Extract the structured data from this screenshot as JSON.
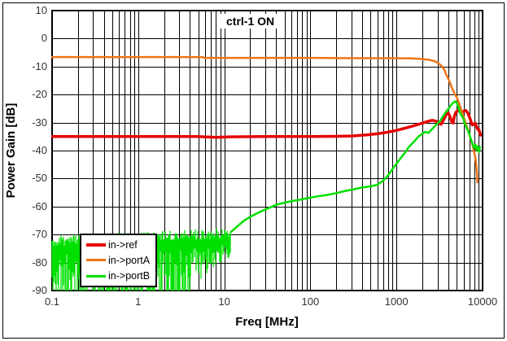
{
  "figure": {
    "title_annotation": "ctrl-1 ON",
    "xlabel": "Freq [MHz]",
    "ylabel": "Power Gain [dB]"
  },
  "axes": {
    "x_scale": "log",
    "xlim": [
      0.1,
      10000
    ],
    "ylim": [
      -90,
      10
    ],
    "x_ticks": [
      0.1,
      1,
      10,
      100,
      1000,
      10000
    ],
    "x_tick_labels": [
      "0.1",
      "1",
      "10",
      "100",
      "1000",
      "10000"
    ],
    "y_ticks": [
      10,
      0,
      -10,
      -20,
      -30,
      -40,
      -50,
      -60,
      -70,
      -80,
      -90
    ],
    "y_tick_labels": [
      "10",
      "0",
      "-10",
      "-20",
      "-30",
      "-40",
      "-50",
      "-60",
      "-70",
      "-80",
      "-90"
    ],
    "grid": "black major y every 10 dB, log major+minor x"
  },
  "legend": {
    "position": "lower-left",
    "items": [
      {
        "label": "in->ref",
        "color": "#e60000",
        "swatch_thickness": 4
      },
      {
        "label": "in->portA",
        "color": "#ee7518",
        "swatch_thickness": 3
      },
      {
        "label": "in->portB",
        "color": "#00e000",
        "swatch_thickness": 3
      }
    ]
  },
  "chart_data": {
    "type": "line",
    "title": "ctrl-1 ON",
    "xlabel": "Freq [MHz]",
    "ylabel": "Power Gain [dB]",
    "x_scale": "log",
    "xlim": [
      0.1,
      10000
    ],
    "ylim": [
      -90,
      10
    ],
    "legend_position": "lower-left",
    "series": [
      {
        "name": "in->ref",
        "color": "#e60000",
        "width": 3.5,
        "points": [
          [
            0.1,
            -35
          ],
          [
            1,
            -35
          ],
          [
            5,
            -35
          ],
          [
            8,
            -35.3
          ],
          [
            12,
            -35.1
          ],
          [
            30,
            -35
          ],
          [
            100,
            -35
          ],
          [
            200,
            -34.9
          ],
          [
            300,
            -34.8
          ],
          [
            450,
            -34.4
          ],
          [
            600,
            -34
          ],
          [
            800,
            -33.4
          ],
          [
            1000,
            -32.8
          ],
          [
            1300,
            -31.9
          ],
          [
            1600,
            -31.1
          ],
          [
            2000,
            -30.2
          ],
          [
            2300,
            -29.6
          ],
          [
            2600,
            -29.2
          ],
          [
            2900,
            -29.5
          ],
          [
            3100,
            -30.3
          ],
          [
            3300,
            -30.6
          ],
          [
            3600,
            -28.5
          ],
          [
            3800,
            -27
          ],
          [
            4000,
            -26.6
          ],
          [
            4200,
            -28
          ],
          [
            4400,
            -29.9
          ],
          [
            4550,
            -30.2
          ],
          [
            4700,
            -27.8
          ],
          [
            4900,
            -26.3
          ],
          [
            5200,
            -25.7
          ],
          [
            5500,
            -26.2
          ],
          [
            5800,
            -26.4
          ],
          [
            6100,
            -25.8
          ],
          [
            6400,
            -25.7
          ],
          [
            6700,
            -26.5
          ],
          [
            7000,
            -27.8
          ],
          [
            7300,
            -29.4
          ],
          [
            7600,
            -30.9
          ],
          [
            7900,
            -30.6
          ],
          [
            8200,
            -30.2
          ],
          [
            8500,
            -31.3
          ],
          [
            8800,
            -32.4
          ],
          [
            9000,
            -32.4
          ],
          [
            9200,
            -33.3
          ],
          [
            9500,
            -34.5
          ]
        ]
      },
      {
        "name": "in->portA",
        "color": "#ee7518",
        "width": 2.5,
        "points": [
          [
            0.1,
            -6.6
          ],
          [
            0.5,
            -6.6
          ],
          [
            1,
            -6.6
          ],
          [
            2,
            -6.6
          ],
          [
            4,
            -6.6
          ],
          [
            5.5,
            -6.6
          ],
          [
            6,
            -6.9
          ],
          [
            10,
            -6.9
          ],
          [
            30,
            -6.9
          ],
          [
            100,
            -6.9
          ],
          [
            300,
            -7
          ],
          [
            600,
            -7
          ],
          [
            1000,
            -7
          ],
          [
            1500,
            -7.1
          ],
          [
            2000,
            -7.3
          ],
          [
            2400,
            -7.6
          ],
          [
            2800,
            -8.1
          ],
          [
            3100,
            -8.9
          ],
          [
            3400,
            -10
          ],
          [
            3600,
            -11.2
          ],
          [
            3800,
            -13
          ],
          [
            4000,
            -14.4
          ],
          [
            4200,
            -15.9
          ],
          [
            4400,
            -17.6
          ],
          [
            4700,
            -19.6
          ],
          [
            5000,
            -20.9
          ],
          [
            5300,
            -22.8
          ],
          [
            5700,
            -25.8
          ],
          [
            6100,
            -28.5
          ],
          [
            6500,
            -31
          ],
          [
            6900,
            -33.6
          ],
          [
            7300,
            -35.9
          ],
          [
            7700,
            -38.4
          ],
          [
            8100,
            -41.3
          ],
          [
            8400,
            -44.3
          ],
          [
            8600,
            -48
          ],
          [
            8700,
            -51.3
          ],
          [
            8750,
            -50.2
          ]
        ]
      },
      {
        "name": "in->portB",
        "color": "#00e000",
        "width": 2.5,
        "points": [
          [
            12,
            -69
          ],
          [
            14,
            -67.2
          ],
          [
            17,
            -65
          ],
          [
            21,
            -63.3
          ],
          [
            26,
            -61.9
          ],
          [
            32,
            -60.7
          ],
          [
            40,
            -59.4
          ],
          [
            50,
            -58.6
          ],
          [
            65,
            -57.9
          ],
          [
            80,
            -57.4
          ],
          [
            100,
            -56.8
          ],
          [
            130,
            -56.2
          ],
          [
            160,
            -55.8
          ],
          [
            200,
            -55.2
          ],
          [
            250,
            -54.5
          ],
          [
            320,
            -53.8
          ],
          [
            400,
            -53.2
          ],
          [
            500,
            -52.8
          ],
          [
            600,
            -52.2
          ],
          [
            700,
            -50.8
          ],
          [
            800,
            -48.8
          ],
          [
            900,
            -46.6
          ],
          [
            1000,
            -44.7
          ],
          [
            1100,
            -43
          ],
          [
            1250,
            -40.8
          ],
          [
            1400,
            -38.6
          ],
          [
            1600,
            -36.8
          ],
          [
            1800,
            -35
          ],
          [
            2000,
            -34
          ],
          [
            2150,
            -33.3
          ],
          [
            2350,
            -33.7
          ],
          [
            2600,
            -32.3
          ],
          [
            2900,
            -30.7
          ],
          [
            3200,
            -29.5
          ],
          [
            3500,
            -27.6
          ],
          [
            3800,
            -26
          ],
          [
            4100,
            -24.7
          ],
          [
            4400,
            -23.4
          ],
          [
            4650,
            -22.7
          ],
          [
            4800,
            -22.4
          ],
          [
            5000,
            -23
          ],
          [
            5200,
            -24.2
          ],
          [
            5500,
            -26.7
          ],
          [
            5800,
            -27.9
          ],
          [
            6000,
            -28.6
          ],
          [
            6200,
            -30.4
          ],
          [
            6500,
            -31.8
          ],
          [
            6900,
            -33.5
          ],
          [
            7200,
            -35.3
          ],
          [
            7500,
            -36.8
          ],
          [
            7900,
            -39
          ],
          [
            8100,
            -38.2
          ],
          [
            8300,
            -37.9
          ],
          [
            8500,
            -39.8
          ],
          [
            8700,
            -38.5
          ],
          [
            8900,
            -39.6
          ],
          [
            9100,
            -40.5
          ],
          [
            9300,
            -38.8
          ]
        ],
        "noise_floor_band": {
          "f_start": 0.1,
          "f_end": 12,
          "seed": 11,
          "top_start": -72,
          "top_end": -69,
          "top_jitter": 4,
          "depth_min": 5,
          "depth_max": 20,
          "floor": -90,
          "deep_until": 4
        }
      }
    ]
  }
}
